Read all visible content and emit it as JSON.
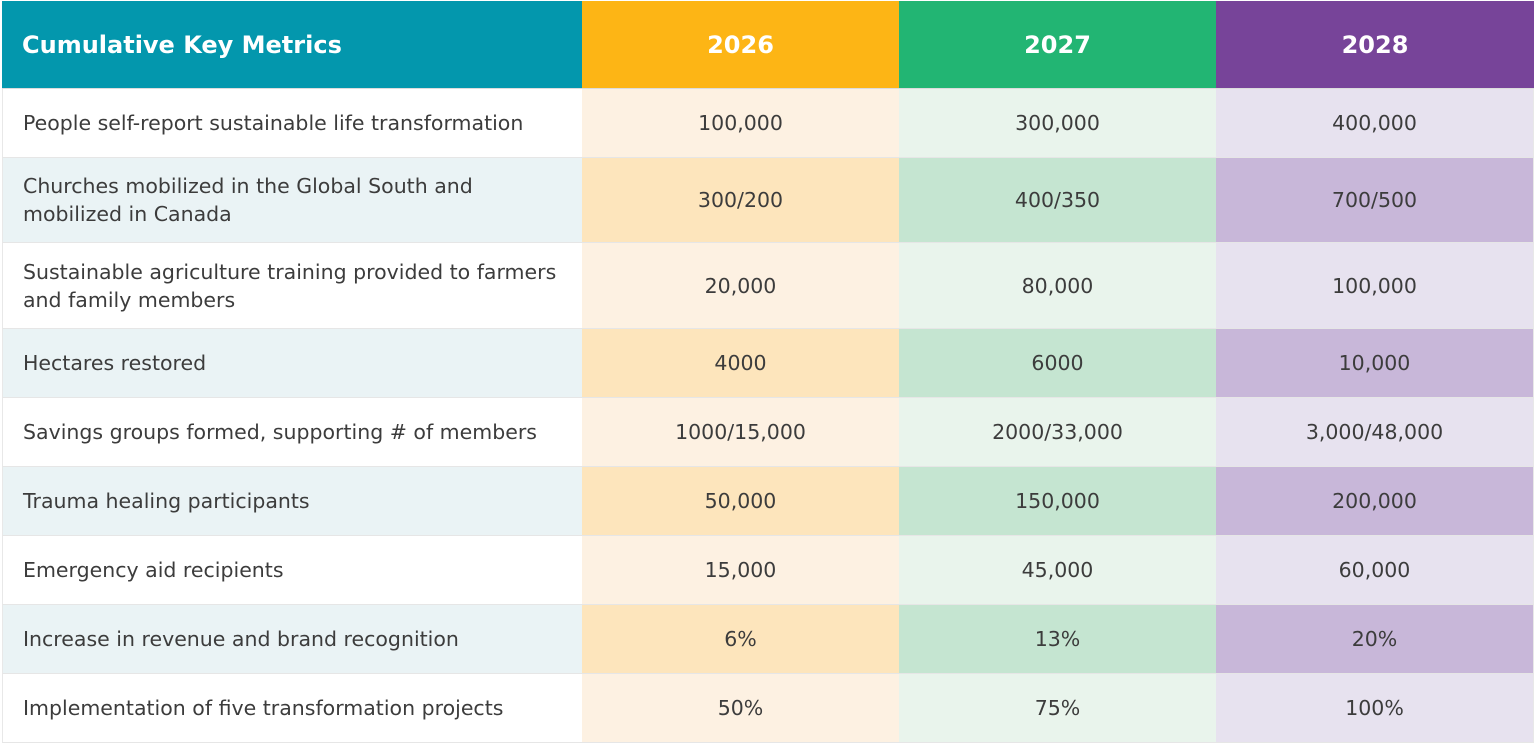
{
  "header": {
    "title": "Cumulative Key Metrics",
    "years": [
      "2026",
      "2027",
      "2028"
    ]
  },
  "rows": [
    {
      "label": "People self-report sustainable life transformation",
      "values": [
        "100,000",
        "300,000",
        "400,000"
      ]
    },
    {
      "label": "Churches mobilized in the Global South and mobilized in Canada",
      "values": [
        "300/200",
        "400/350",
        "700/500"
      ]
    },
    {
      "label": "Sustainable agriculture training provided to farmers and family members",
      "values": [
        "20,000",
        "80,000",
        "100,000"
      ]
    },
    {
      "label": "Hectares restored",
      "values": [
        "4000",
        "6000",
        "10,000"
      ]
    },
    {
      "label": "Savings groups formed, supporting # of members",
      "values": [
        "1000/15,000",
        "2000/33,000",
        "3,000/48,000"
      ]
    },
    {
      "label": "Trauma healing participants",
      "values": [
        "50,000",
        "150,000",
        "200,000"
      ]
    },
    {
      "label": "Emergency aid recipients",
      "values": [
        "15,000",
        "45,000",
        "60,000"
      ]
    },
    {
      "label": "Increase in revenue and brand recognition",
      "values": [
        "6%",
        "13%",
        "20%"
      ]
    },
    {
      "label": "Implementation of five transformation projects",
      "values": [
        "50%",
        "75%",
        "100%"
      ]
    }
  ],
  "colors": {
    "header_teal": "#0397ad",
    "year_2026": "#fdb515",
    "year_2027": "#22b573",
    "year_2028": "#774499"
  }
}
